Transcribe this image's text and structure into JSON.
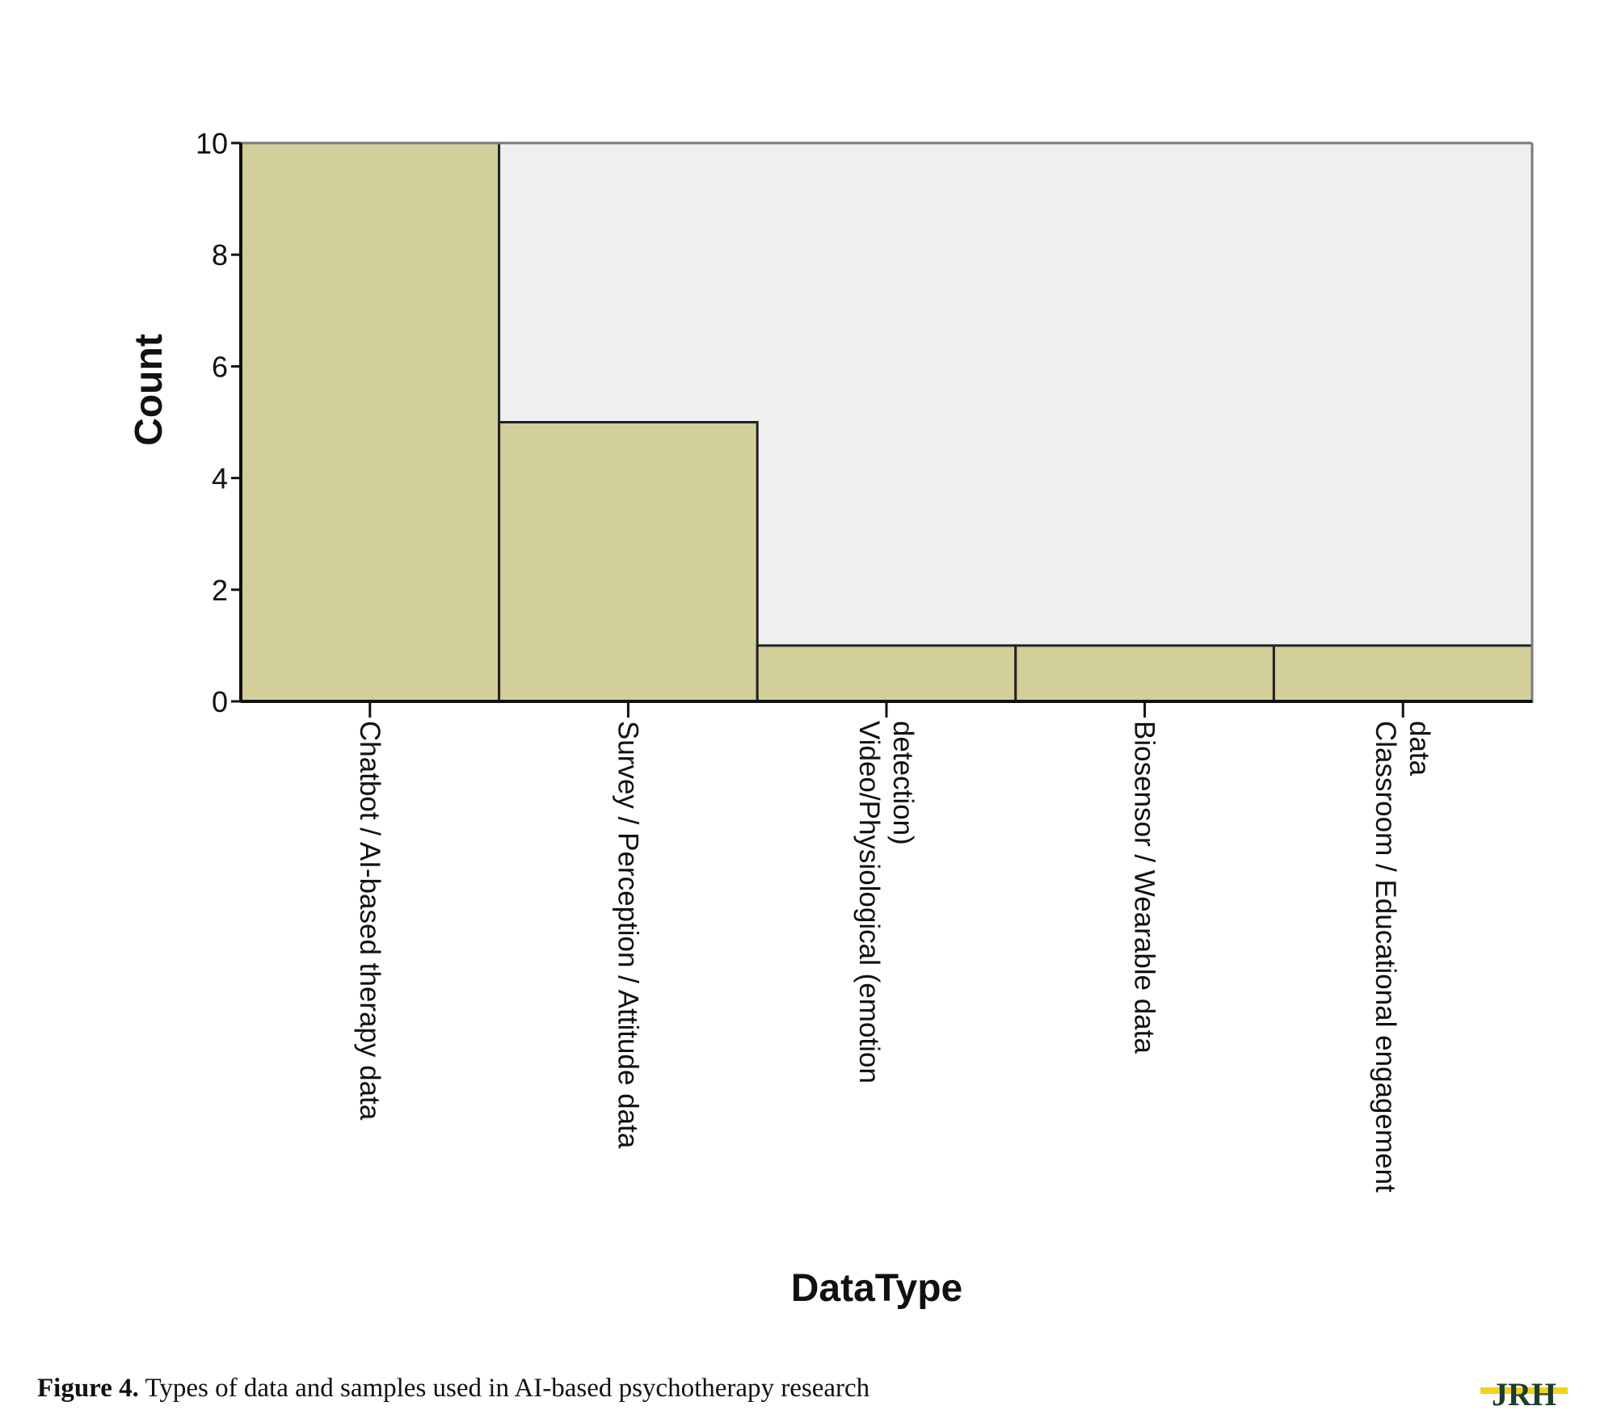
{
  "chart_data": {
    "type": "bar",
    "categories": [
      "Chatbot / AI-based therapy data",
      "Survey / Perception / Attitude data",
      "Video/Physiological (emotion detection)",
      "Biosensor / Wearable data",
      "Classroom / Educational engagement data"
    ],
    "category_lines": [
      [
        "Chatbot / AI-based therapy data"
      ],
      [
        "Survey / Perception / Attitude data"
      ],
      [
        "Video/Physiological (emotion",
        "detection)"
      ],
      [
        "Biosensor / Wearable data"
      ],
      [
        "Classroom / Educational engagement",
        "data"
      ]
    ],
    "values": [
      10,
      5,
      1,
      1,
      1
    ],
    "xlabel": "DataType",
    "ylabel": "Count",
    "ylim": [
      0,
      10
    ],
    "yticks": [
      0,
      2,
      4,
      6,
      8,
      10
    ],
    "grid": false,
    "colors": {
      "bar_fill": "#d3cf9a",
      "bar_stroke": "#222222",
      "plot_background": "#f0f0f0",
      "frame": "#7a7a7a"
    }
  },
  "caption": {
    "label": "Figure 4.",
    "text": " Types of data and samples used in AI-based psychotherapy research"
  },
  "logo": {
    "text": "JRH",
    "colors": {
      "fill": "#1f3b2a",
      "accent": "#f2d21b"
    }
  }
}
